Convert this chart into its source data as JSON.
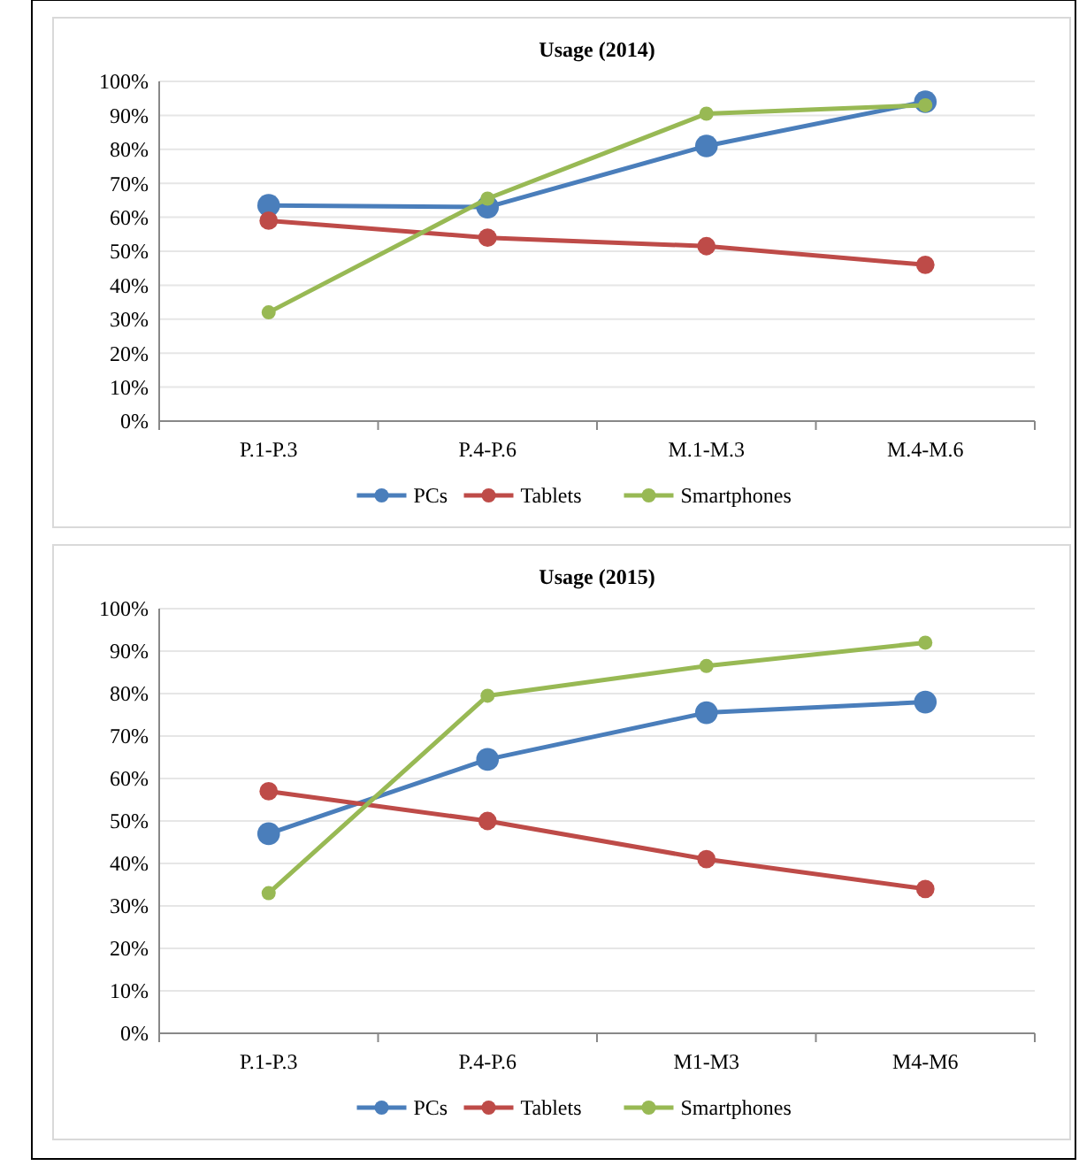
{
  "chart_data": [
    {
      "type": "line",
      "title": "Usage (2014)",
      "categories": [
        "P.1-P.3",
        "P.4-P.6",
        "M.1-M.3",
        "M.4-M.6"
      ],
      "ylim": [
        0,
        100
      ],
      "yticks": [
        {
          "value": 0,
          "label": "0%"
        },
        {
          "value": 10,
          "label": "10%"
        },
        {
          "value": 20,
          "label": "20%"
        },
        {
          "value": 30,
          "label": "30%"
        },
        {
          "value": 40,
          "label": "40%"
        },
        {
          "value": 50,
          "label": "50%"
        },
        {
          "value": 60,
          "label": "60%"
        },
        {
          "value": 70,
          "label": "70%"
        },
        {
          "value": 80,
          "label": "80%"
        },
        {
          "value": 90,
          "label": "90%"
        },
        {
          "value": 100,
          "label": "100%"
        }
      ],
      "grid": "y",
      "legend": "bottom",
      "marker": "circle",
      "series": [
        {
          "name": "PCs",
          "color": "#4a7ebb",
          "values": [
            63.5,
            63,
            81,
            94
          ]
        },
        {
          "name": "Tablets",
          "color": "#be4b48",
          "values": [
            59,
            54,
            51.5,
            46
          ]
        },
        {
          "name": "Smartphones",
          "color": "#98b954",
          "values": [
            32,
            65.5,
            90.5,
            93
          ]
        }
      ]
    },
    {
      "type": "line",
      "title": "Usage (2015)",
      "categories": [
        "P.1-P.3",
        "P.4-P.6",
        "M1-M3",
        "M4-M6"
      ],
      "ylim": [
        0,
        100
      ],
      "yticks": [
        {
          "value": 0,
          "label": "0%"
        },
        {
          "value": 10,
          "label": "10%"
        },
        {
          "value": 20,
          "label": "20%"
        },
        {
          "value": 30,
          "label": "30%"
        },
        {
          "value": 40,
          "label": "40%"
        },
        {
          "value": 50,
          "label": "50%"
        },
        {
          "value": 60,
          "label": "60%"
        },
        {
          "value": 70,
          "label": "70%"
        },
        {
          "value": 80,
          "label": "80%"
        },
        {
          "value": 90,
          "label": "90%"
        },
        {
          "value": 100,
          "label": "100%"
        }
      ],
      "grid": "y",
      "legend": "bottom",
      "marker": "circle",
      "series": [
        {
          "name": "PCs",
          "color": "#4a7ebb",
          "values": [
            47,
            64.5,
            75.5,
            78
          ]
        },
        {
          "name": "Tablets",
          "color": "#be4b48",
          "values": [
            57,
            50,
            41,
            34
          ]
        },
        {
          "name": "Smartphones",
          "color": "#98b954",
          "values": [
            33,
            79.5,
            86.5,
            92
          ]
        }
      ]
    }
  ]
}
